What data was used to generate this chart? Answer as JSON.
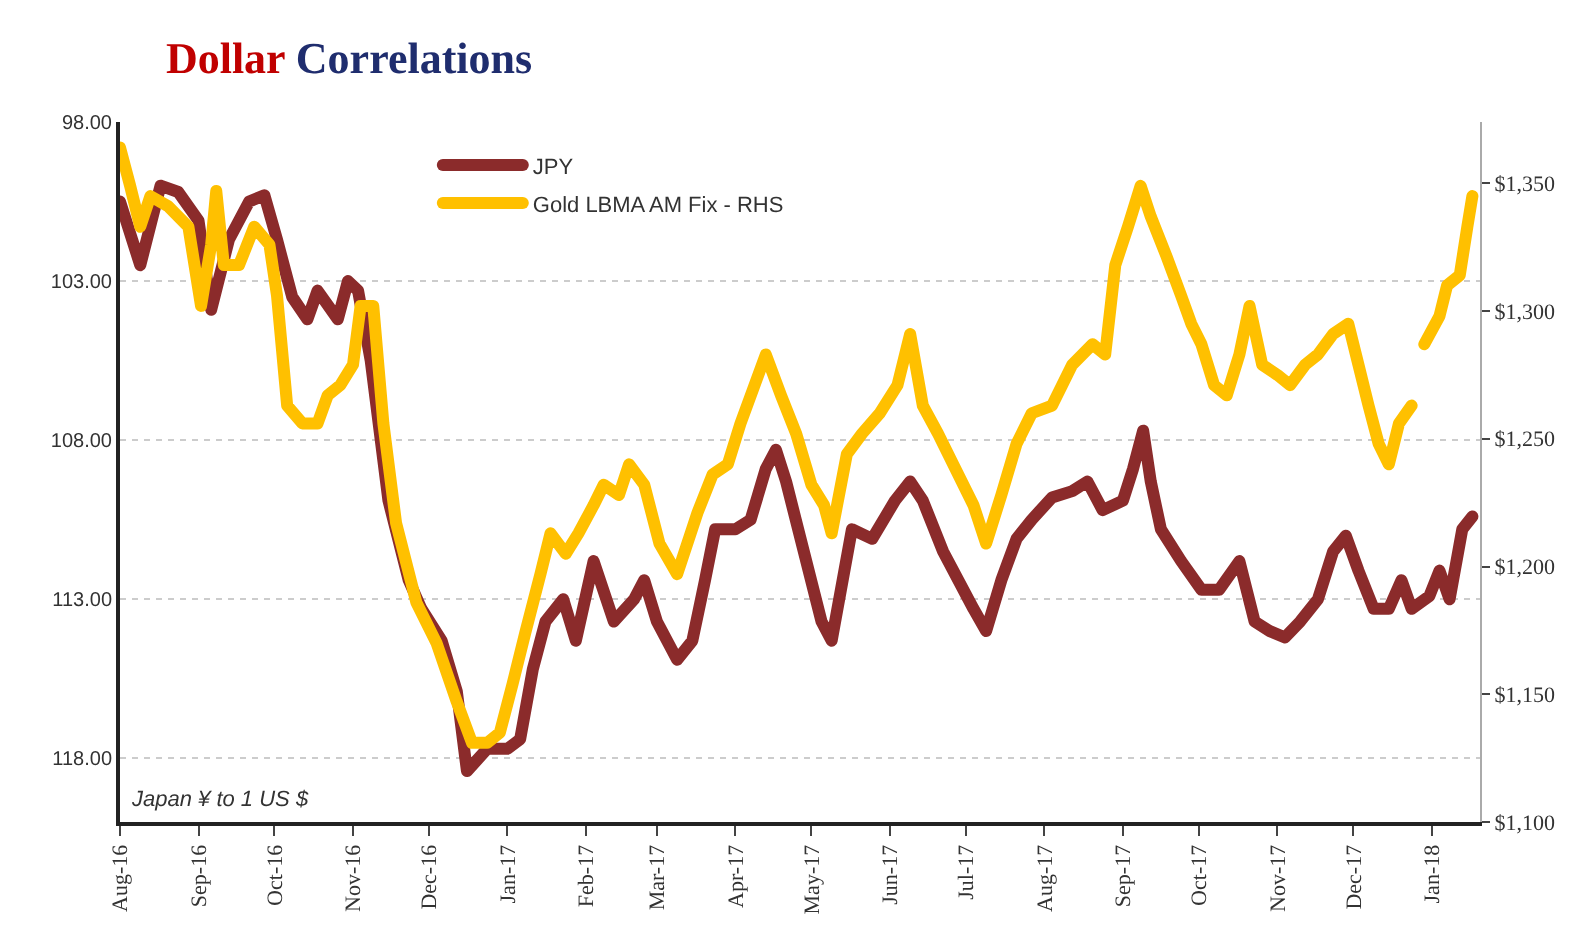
{
  "chart_data": {
    "type": "line",
    "title": "Dollar Correlations",
    "annotations": [
      "Japan ¥ to 1 US $"
    ],
    "xlim": [
      "2016-08-01",
      "2018-01-20"
    ],
    "xticks": [
      {
        "value": "2016-08-01",
        "label": "Aug-16"
      },
      {
        "value": "2016-09-01",
        "label": "Sep-16"
      },
      {
        "value": "2016-10-01",
        "label": "Oct-16"
      },
      {
        "value": "2016-11-01",
        "label": "Nov-16"
      },
      {
        "value": "2016-12-01",
        "label": "Dec-16"
      },
      {
        "value": "2017-01-01",
        "label": "Jan-17"
      },
      {
        "value": "2017-02-01",
        "label": "Feb-17"
      },
      {
        "value": "2017-03-01",
        "label": "Mar-17"
      },
      {
        "value": "2017-04-01",
        "label": "Apr-17"
      },
      {
        "value": "2017-05-01",
        "label": "May-17"
      },
      {
        "value": "2017-06-01",
        "label": "Jun-17"
      },
      {
        "value": "2017-07-01",
        "label": "Jul-17"
      },
      {
        "value": "2017-08-01",
        "label": "Aug-17"
      },
      {
        "value": "2017-09-01",
        "label": "Sep-17"
      },
      {
        "value": "2017-10-01",
        "label": "Oct-17"
      },
      {
        "value": "2017-11-01",
        "label": "Nov-17"
      },
      {
        "value": "2017-12-01",
        "label": "Dec-17"
      },
      {
        "value": "2018-01-01",
        "label": "Jan-18"
      }
    ],
    "ylim": [
      120,
      98
    ],
    "yticks": [
      {
        "value": 98,
        "label": "98.00"
      },
      {
        "value": 103,
        "label": "103.00"
      },
      {
        "value": 108,
        "label": "108.00"
      },
      {
        "value": 113,
        "label": "113.00"
      },
      {
        "value": 118,
        "label": "118.00"
      }
    ],
    "y2lim": [
      1100,
      1374
    ],
    "y2ticks": [
      {
        "value": 1100,
        "label": "$1,100"
      },
      {
        "value": 1150,
        "label": "$1,150"
      },
      {
        "value": 1200,
        "label": "$1,200"
      },
      {
        "value": 1250,
        "label": "$1,250"
      },
      {
        "value": 1300,
        "label": "$1,300"
      },
      {
        "value": 1350,
        "label": "$1,350"
      }
    ],
    "grid": "y",
    "legend": "top left",
    "marker": "none",
    "line_style": "solid",
    "series": [
      {
        "name": "JPY",
        "color": "#8b2b2b",
        "x": [
          "2016-08-01",
          "2016-08-09",
          "2016-08-17",
          "2016-08-24",
          "2016-09-01",
          "2016-09-06",
          "2016-09-13",
          "2016-09-21",
          "2016-09-27",
          "2016-10-02",
          "2016-10-08",
          "2016-10-14",
          "2016-10-18",
          "2016-10-26",
          "2016-10-30",
          "2016-11-03",
          "2016-11-08",
          "2016-11-15",
          "2016-11-23",
          "2016-11-28",
          "2016-12-06",
          "2016-12-12",
          "2016-12-16",
          "2016-12-24",
          "2017-01-01",
          "2017-01-06",
          "2017-01-11",
          "2017-01-16",
          "2017-01-23",
          "2017-01-28",
          "2017-02-04",
          "2017-02-12",
          "2017-02-20",
          "2017-02-24",
          "2017-03-01",
          "2017-03-09",
          "2017-03-15",
          "2017-03-20",
          "2017-03-24",
          "2017-04-01",
          "2017-04-07",
          "2017-04-13",
          "2017-04-17",
          "2017-04-21",
          "2017-04-28",
          "2017-05-05",
          "2017-05-09",
          "2017-05-17",
          "2017-05-25",
          "2017-06-03",
          "2017-06-09",
          "2017-06-14",
          "2017-06-22",
          "2017-07-04",
          "2017-07-09",
          "2017-07-15",
          "2017-07-21",
          "2017-07-27",
          "2017-08-04",
          "2017-08-12",
          "2017-08-18",
          "2017-08-24",
          "2017-09-01",
          "2017-09-05",
          "2017-09-09",
          "2017-09-12",
          "2017-09-16",
          "2017-09-24",
          "2017-10-02",
          "2017-10-09",
          "2017-10-17",
          "2017-10-23",
          "2017-10-29",
          "2017-11-04",
          "2017-11-10",
          "2017-11-17",
          "2017-11-23",
          "2017-11-28",
          "2017-12-03",
          "2017-12-09",
          "2017-12-15",
          "2017-12-20",
          "2017-12-24",
          "2017-12-31",
          "2018-01-04",
          "2018-01-08",
          "2018-01-13",
          "2018-01-17"
        ],
        "values": [
          100.5,
          102.5,
          100.0,
          100.2,
          101.1,
          103.9,
          101.7,
          100.5,
          100.3,
          101.7,
          103.5,
          104.2,
          103.3,
          104.2,
          103.0,
          103.3,
          105.5,
          109.9,
          112.4,
          113.3,
          114.3,
          115.9,
          118.4,
          117.7,
          117.7,
          117.4,
          115.2,
          113.7,
          113.0,
          114.3,
          111.8,
          113.7,
          113.0,
          112.4,
          113.7,
          114.9,
          114.3,
          112.4,
          110.8,
          110.8,
          110.5,
          108.9,
          108.3,
          109.3,
          111.5,
          113.7,
          114.3,
          110.8,
          111.1,
          109.9,
          109.3,
          109.9,
          111.5,
          113.3,
          114.0,
          112.4,
          111.1,
          110.5,
          109.8,
          109.6,
          109.3,
          110.2,
          109.9,
          108.9,
          107.7,
          109.3,
          110.8,
          111.8,
          112.7,
          112.7,
          111.8,
          113.7,
          114.0,
          114.2,
          113.7,
          113.0,
          111.5,
          111.0,
          112.1,
          113.3,
          113.3,
          112.4,
          113.3,
          112.9,
          112.1,
          113.0,
          110.8,
          110.4
        ]
      },
      {
        "name": "Gold LBMA AM Fix - RHS",
        "color": "#ffc000",
        "axis": "y2",
        "x": [
          "2016-08-01",
          "2016-08-05",
          "2016-08-09",
          "2016-08-13",
          "2016-08-20",
          "2016-08-28",
          "2016-09-02",
          "2016-09-06",
          "2016-09-08",
          "2016-09-11",
          "2016-09-17",
          "2016-09-23",
          "2016-09-29",
          "2016-10-02",
          "2016-10-06",
          "2016-10-12",
          "2016-10-18",
          "2016-10-22",
          "2016-10-27",
          "2016-11-01",
          "2016-11-04",
          "2016-11-09",
          "2016-11-13",
          "2016-11-18",
          "2016-11-26",
          "2016-12-04",
          "2016-12-12",
          "2016-12-18",
          "2016-12-24",
          "2016-12-29",
          "2017-01-03",
          "2017-01-08",
          "2017-01-14",
          "2017-01-18",
          "2017-01-24",
          "2017-01-29",
          "2017-02-04",
          "2017-02-08",
          "2017-02-14",
          "2017-02-18",
          "2017-02-24",
          "2017-03-02",
          "2017-03-09",
          "2017-03-17",
          "2017-03-23",
          "2017-03-29",
          "2017-04-03",
          "2017-04-13",
          "2017-04-19",
          "2017-04-25",
          "2017-05-01",
          "2017-05-06",
          "2017-05-09",
          "2017-05-15",
          "2017-05-21",
          "2017-05-28",
          "2017-06-04",
          "2017-06-09",
          "2017-06-14",
          "2017-06-20",
          "2017-06-26",
          "2017-07-04",
          "2017-07-09",
          "2017-07-15",
          "2017-07-21",
          "2017-07-27",
          "2017-08-04",
          "2017-08-12",
          "2017-08-20",
          "2017-08-25",
          "2017-08-29",
          "2017-09-03",
          "2017-09-08",
          "2017-09-12",
          "2017-09-18",
          "2017-09-24",
          "2017-09-28",
          "2017-10-02",
          "2017-10-07",
          "2017-10-12",
          "2017-10-17",
          "2017-10-21",
          "2017-10-26",
          "2017-11-01",
          "2017-11-06",
          "2017-11-12",
          "2017-11-17",
          "2017-11-23",
          "2017-11-29",
          "2017-12-03",
          "2017-12-07",
          "2017-12-11",
          "2017-12-15",
          "2017-12-19",
          "2017-12-24",
          "2017-12-27",
          "2017-12-29",
          "2018-01-04",
          "2018-01-07",
          "2018-01-12",
          "2018-01-15",
          "2018-01-17"
        ],
        "values": [
          1364,
          1349,
          1333,
          1345,
          1341,
          1333,
          1302,
          1326,
          1347,
          1318,
          1318,
          1333,
          1326,
          1306,
          1263,
          1256,
          1256,
          1267,
          1271,
          1279,
          1302,
          1302,
          1256,
          1217,
          1186,
          1170,
          1147,
          1131,
          1131,
          1135,
          1154,
          1174,
          1197,
          1213,
          1205,
          1213,
          1224,
          1232,
          1228,
          1240,
          1232,
          1209,
          1197,
          1221,
          1236,
          1240,
          1256,
          1283,
          1267,
          1252,
          1232,
          1224,
          1213,
          1244,
          1252,
          1260,
          1271,
          1291,
          1263,
          1252,
          1240,
          1224,
          1209,
          1228,
          1248,
          1260,
          1263,
          1279,
          1287,
          1283,
          1318,
          1333,
          1349,
          1337,
          1322,
          1306,
          1295,
          1287,
          1271,
          1267,
          1283,
          1302,
          1279,
          1275,
          1271,
          1279,
          1283,
          1291,
          1295,
          1279,
          1263,
          1248,
          1240,
          1256,
          1263,
          null,
          1287,
          1298,
          1310,
          1314,
          1333,
          1345
        ]
      }
    ]
  }
}
